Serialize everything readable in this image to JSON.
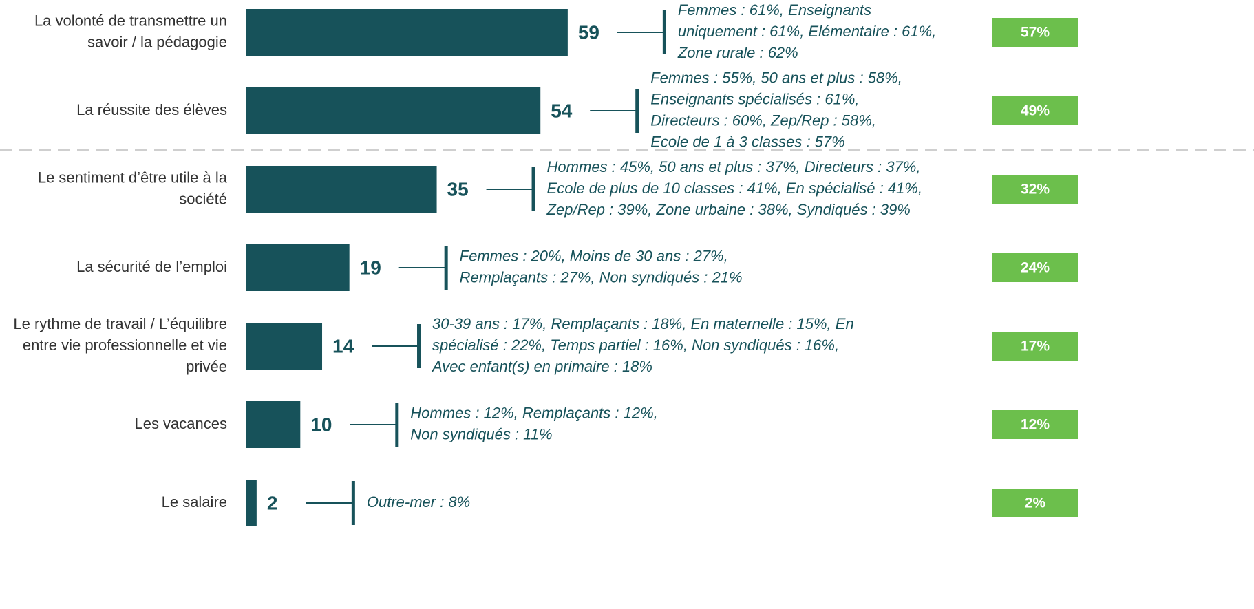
{
  "chart_data": {
    "type": "bar",
    "orientation": "horizontal",
    "categories": [
      [
        "La volonté de transmettre un",
        "savoir / la pédagogie"
      ],
      [
        "La réussite des élèves"
      ],
      [
        "Le sentiment d’être utile à la",
        "société"
      ],
      [
        "La sécurité de l’emploi"
      ],
      [
        "Le rythme de travail / L’équilibre",
        "entre vie professionnelle et vie",
        "privée"
      ],
      [
        "Les vacances"
      ],
      [
        "Le salaire"
      ]
    ],
    "series": [
      {
        "color": "#17525a",
        "values": [
          59,
          54,
          35,
          19,
          14,
          10,
          2
        ]
      },
      {
        "color": "#6cbf4c",
        "values": [
          57,
          49,
          32,
          24,
          17,
          12,
          2
        ],
        "value_labels": [
          "57%",
          "49%",
          "32%",
          "24%",
          "17%",
          "12%",
          "2%"
        ]
      }
    ],
    "annotations": [
      [
        "Femmes : 61%, Enseignants",
        "uniquement : 61%, Elémentaire : 61%,",
        "Zone rurale : 62%"
      ],
      [
        "Femmes : 55%, 50 ans et plus : 58%,",
        "Enseignants spécialisés : 61%,",
        "Directeurs : 60%, Zep/Rep : 58%,",
        "Ecole de 1 à 3 classes : 57%"
      ],
      [
        "Hommes : 45%, 50 ans et plus : 37%, Directeurs : 37%,",
        "Ecole de plus de 10 classes : 41%, En spécialisé : 41%,",
        "Zep/Rep : 39%, Zone urbaine : 38%, Syndiqués : 39%"
      ],
      [
        "Femmes : 20%, Moins de 30 ans : 27%,",
        "Remplaçants : 27%, Non syndiqués : 21%"
      ],
      [
        "30-39 ans : 17%, Remplaçants : 18%, En maternelle : 15%, En",
        "spécialisé : 22%, Temps partiel : 16%, Non syndiqués : 16%,",
        "Avec enfant(s) en primaire : 18%"
      ],
      [
        "Hommes : 12%, Remplaçants : 12%,",
        "Non syndiqués : 11%"
      ],
      [
        "Outre-mer : 8%"
      ]
    ]
  }
}
